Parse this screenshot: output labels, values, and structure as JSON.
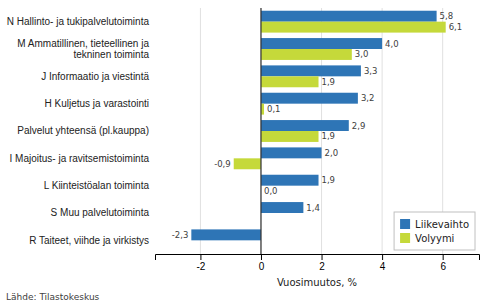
{
  "chart_data": {
    "type": "bar",
    "orientation": "horizontal",
    "x_label": "Vuosimuutos, %",
    "annotations": [
      "Lähde: Tilastokeskus"
    ],
    "categories": [
      "R Taiteet, viihde ja virkistys",
      "S Muu palvelutoiminta",
      "L Kiinteistöalan toiminta",
      "I Majoitus- ja ravitsemistoiminta",
      "Palvelut yhteensä (pl.kauppa)",
      "H Kuljetus ja varastointi",
      "J Informaatio ja viestintä",
      "M Ammatillinen, tieteellinen ja tekninen toiminta",
      "N Hallinto- ja tukipalvelutoiminta"
    ],
    "series": [
      {
        "name": "Liikevaihto",
        "color": "#2E75B6",
        "values": [
          -2.3,
          1.4,
          1.9,
          2.0,
          2.9,
          3.2,
          3.3,
          4.0,
          5.8
        ],
        "value_labels": [
          "-2,3",
          "1,4",
          "1,9",
          "2,0",
          "2,9",
          "3,2",
          "3,3",
          "4,0",
          "5,8"
        ]
      },
      {
        "name": "Volyymi",
        "color": "#C5D93A",
        "values": [
          null,
          null,
          0.0,
          -0.9,
          1.9,
          0.1,
          1.9,
          3.0,
          6.1
        ],
        "value_labels": [
          null,
          null,
          "0,0",
          "-0,9",
          "1,9",
          "0,1",
          "1,9",
          "3,0",
          "6,1"
        ]
      }
    ],
    "xlim": [
      -3.5,
      7.2
    ],
    "xticks": [
      -2,
      0,
      2,
      4,
      6
    ],
    "grid": true,
    "legend": "lower right",
    "data_labels": true
  }
}
